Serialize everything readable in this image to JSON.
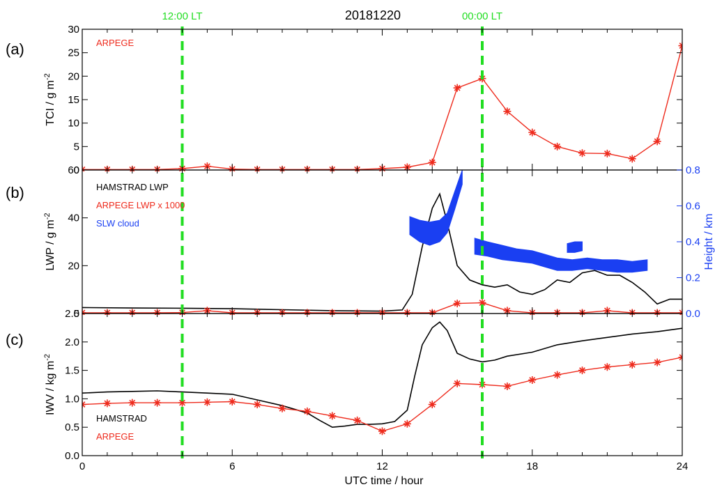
{
  "chart_data": {
    "type": "line",
    "title": "20181220",
    "xlabel": "UTC time / hour",
    "xlim": [
      0,
      24
    ],
    "x_ticks": [
      "0",
      "6",
      "12",
      "18",
      "24"
    ],
    "vertical_markers": [
      {
        "x": 4,
        "label": "12:00 LT",
        "color": "#22dd22"
      },
      {
        "x": 16,
        "label": "00:00 LT",
        "color": "#22dd22"
      }
    ],
    "colors": {
      "hamstrad": "#000000",
      "arpege": "#ee2a1c",
      "slw": "#1a3ff2",
      "marker": "#22dd22"
    },
    "panels": [
      {
        "id": "a",
        "panel_label": "(a)",
        "ylabel": "TCI / g m",
        "ylabel_sup": "-2",
        "ylim": [
          0,
          30
        ],
        "y_ticks": [
          "30",
          "25",
          "20",
          "15",
          "10",
          "5",
          "0"
        ],
        "legend": [
          {
            "name": "ARPEGE",
            "color": "#ee2a1c"
          }
        ],
        "series": [
          {
            "name": "ARPEGE",
            "color": "#ee2a1c",
            "style": "line-star",
            "x": [
              0,
              1,
              2,
              3,
              4,
              5,
              6,
              7,
              8,
              9,
              10,
              11,
              12,
              13,
              14,
              15,
              16,
              17,
              18,
              19,
              20,
              21,
              22,
              23,
              24
            ],
            "values": [
              0.1,
              0.1,
              0.1,
              0.1,
              0.3,
              0.8,
              0.2,
              0.1,
              0.1,
              0.1,
              0.1,
              0.1,
              0.3,
              0.6,
              1.6,
              17.5,
              19.5,
              12.5,
              8.0,
              5.0,
              3.6,
              3.5,
              2.4,
              6.1,
              26.5
            ]
          }
        ]
      },
      {
        "id": "b",
        "panel_label": "(b)",
        "ylabel": "LWP / g m",
        "ylabel_sup": "-2",
        "ylim": [
          0,
          60
        ],
        "y_ticks": [
          "60",
          "40",
          "20",
          "0"
        ],
        "y2label": "Height / km",
        "y2lim": [
          0,
          0.8
        ],
        "y2_ticks": [
          "0.8",
          "0.6",
          "0.4",
          "0.2",
          "0.0"
        ],
        "legend": [
          {
            "name": "HAMSTRAD LWP",
            "color": "#000000"
          },
          {
            "name": "ARPEGE LWP x 1000",
            "color": "#ee2a1c"
          },
          {
            "name": "SLW cloud",
            "color": "#1a3ff2"
          }
        ],
        "series": [
          {
            "name": "HAMSTRAD LWP",
            "color": "#000000",
            "style": "line",
            "x": [
              0,
              2,
              4,
              6,
              8,
              10,
              12,
              12.8,
              13.2,
              13.6,
              14.0,
              14.3,
              14.6,
              15.0,
              15.5,
              16.0,
              16.5,
              17.0,
              17.5,
              18.0,
              18.5,
              19.0,
              19.5,
              20.0,
              20.5,
              21.0,
              21.5,
              22.0,
              22.5,
              23.0,
              23.5,
              24.0
            ],
            "values": [
              2.5,
              2.3,
              2.2,
              2.0,
              1.6,
              1.2,
              1.0,
              1.5,
              8,
              28,
              44,
              50,
              38,
              20,
              14,
              12,
              11,
              12,
              9,
              8,
              10,
              14,
              13,
              17,
              18,
              16,
              16,
              13,
              9,
              4,
              6,
              6
            ]
          },
          {
            "name": "ARPEGE LWP x 1000",
            "color": "#ee2a1c",
            "style": "line-star",
            "x": [
              0,
              1,
              2,
              3,
              4,
              5,
              6,
              7,
              8,
              9,
              10,
              11,
              12,
              13,
              14,
              15,
              16,
              17,
              18,
              19,
              20,
              21,
              22,
              23,
              24
            ],
            "values": [
              0.3,
              0.3,
              0.3,
              0.3,
              0.4,
              1.2,
              0.3,
              0.3,
              0.3,
              0.3,
              0.3,
              0.3,
              0.3,
              0.3,
              0.3,
              4.2,
              4.5,
              1.2,
              0.3,
              0.3,
              0.3,
              1.2,
              0.3,
              0.3,
              0.3
            ]
          },
          {
            "name": "SLW cloud",
            "color": "#1a3ff2",
            "style": "band",
            "axis": "y2",
            "segments": [
              {
                "x": [
                  13.1,
                  13.5,
                  13.9,
                  14.3,
                  14.6,
                  14.9,
                  15.2
                ],
                "low": [
                  0.44,
                  0.4,
                  0.38,
                  0.4,
                  0.45,
                  0.58,
                  0.72
                ],
                "high": [
                  0.54,
                  0.52,
                  0.51,
                  0.52,
                  0.56,
                  0.68,
                  0.8
                ]
              },
              {
                "x": [
                  15.7,
                  16.2,
                  16.8,
                  17.4,
                  18.0,
                  18.5,
                  19.0,
                  19.6,
                  20.2,
                  20.8,
                  21.4,
                  22.0,
                  22.6
                ],
                "low": [
                  0.33,
                  0.32,
                  0.3,
                  0.29,
                  0.28,
                  0.26,
                  0.24,
                  0.24,
                  0.25,
                  0.24,
                  0.23,
                  0.23,
                  0.24
                ],
                "high": [
                  0.42,
                  0.4,
                  0.38,
                  0.36,
                  0.35,
                  0.33,
                  0.31,
                  0.3,
                  0.31,
                  0.3,
                  0.3,
                  0.29,
                  0.3
                ]
              },
              {
                "x": [
                  19.4,
                  19.7,
                  20.0
                ],
                "low": [
                  0.34,
                  0.34,
                  0.35
                ],
                "high": [
                  0.39,
                  0.4,
                  0.4
                ]
              }
            ]
          }
        ]
      },
      {
        "id": "c",
        "panel_label": "(c)",
        "ylabel": "IWV / kg m",
        "ylabel_sup": "-2",
        "ylim": [
          0,
          2.5
        ],
        "y_ticks": [
          "2.5",
          "2.0",
          "1.5",
          "1.0",
          "0.5",
          "0.0"
        ],
        "legend": [
          {
            "name": "HAMSTRAD",
            "color": "#000000"
          },
          {
            "name": "ARPEGE",
            "color": "#ee2a1c"
          }
        ],
        "series": [
          {
            "name": "HAMSTRAD",
            "color": "#000000",
            "style": "line",
            "x": [
              0,
              1,
              2,
              3,
              4,
              5,
              6,
              7,
              8,
              9,
              9.5,
              10,
              10.5,
              11,
              11.5,
              12,
              12.5,
              13,
              13.3,
              13.6,
              14.0,
              14.3,
              14.6,
              15,
              15.5,
              16,
              16.5,
              17,
              18,
              19,
              20,
              21,
              22,
              23,
              24
            ],
            "values": [
              1.1,
              1.12,
              1.13,
              1.14,
              1.12,
              1.1,
              1.08,
              0.98,
              0.88,
              0.75,
              0.62,
              0.5,
              0.52,
              0.55,
              0.55,
              0.56,
              0.6,
              0.8,
              1.4,
              1.95,
              2.25,
              2.35,
              2.2,
              1.8,
              1.7,
              1.65,
              1.68,
              1.75,
              1.82,
              1.95,
              2.02,
              2.08,
              2.14,
              2.18,
              2.24
            ]
          },
          {
            "name": "ARPEGE",
            "color": "#ee2a1c",
            "style": "line-star",
            "x": [
              0,
              1,
              2,
              3,
              4,
              5,
              6,
              7,
              8,
              9,
              10,
              11,
              12,
              13,
              14,
              15,
              16,
              17,
              18,
              19,
              20,
              21,
              22,
              23,
              24
            ],
            "values": [
              0.9,
              0.92,
              0.93,
              0.93,
              0.93,
              0.94,
              0.95,
              0.9,
              0.83,
              0.78,
              0.7,
              0.62,
              0.43,
              0.56,
              0.9,
              1.27,
              1.25,
              1.22,
              1.33,
              1.42,
              1.5,
              1.56,
              1.6,
              1.64,
              1.73
            ]
          }
        ]
      }
    ]
  }
}
